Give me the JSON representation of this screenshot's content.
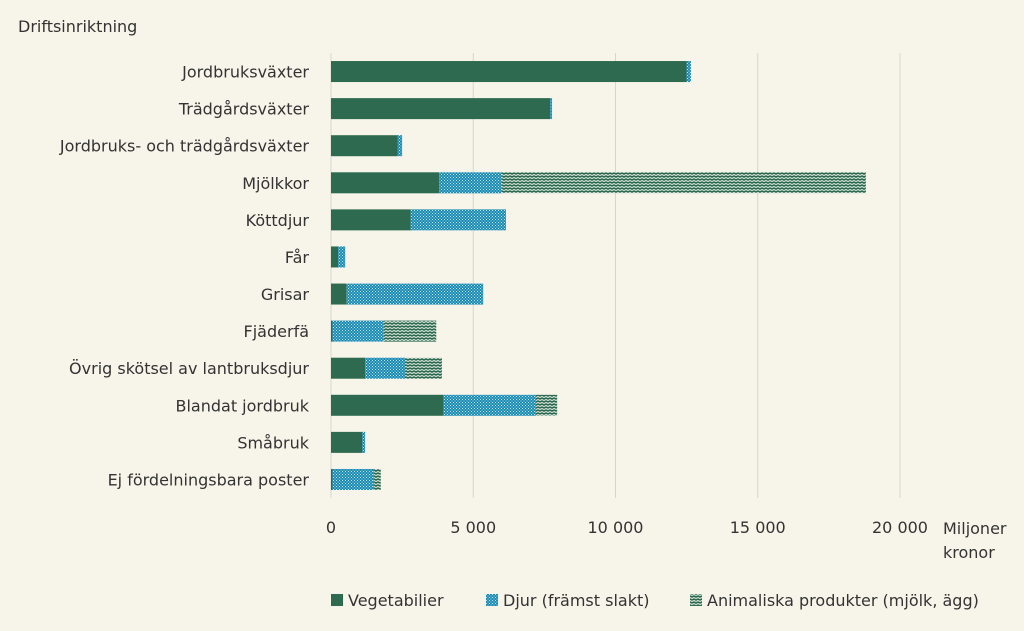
{
  "chart_data": {
    "type": "bar",
    "orientation": "horizontal",
    "stacked": true,
    "y_title": "Driftsinriktning",
    "x_unit": "Miljoner kronor",
    "x_unit_lines": [
      "Miljoner",
      "kronor"
    ],
    "xlim": [
      0,
      20000
    ],
    "ticks": [
      {
        "value": 0,
        "label": "0"
      },
      {
        "value": 5000,
        "label": "5 000"
      },
      {
        "value": 10000,
        "label": "10 000"
      },
      {
        "value": 15000,
        "label": "15 000"
      },
      {
        "value": 20000,
        "label": "20 000"
      }
    ],
    "grid": "vertical",
    "legend_position": "bottom",
    "categories": [
      "Jordbruksväxter",
      "Trädgårdsväxter",
      "Jordbruks- och trädgårdsväxter",
      "Mjölkkor",
      "Köttdjur",
      "Får",
      "Grisar",
      "Fjäderfä",
      "Övrig skötsel av lantbruksdjur",
      "Blandat jordbruk",
      "Småbruk",
      "Ej fördelningsbara poster"
    ],
    "series": [
      {
        "name": "Vegetabilier",
        "color": "#2d6a4f",
        "pattern": "solid",
        "values": [
          12500,
          7700,
          2350,
          3800,
          2800,
          250,
          550,
          50,
          1200,
          3950,
          1100,
          50
        ]
      },
      {
        "name": "Djur (främst slakt)",
        "color": "#1a8ab5",
        "pattern": "dots",
        "values": [
          150,
          70,
          150,
          2200,
          3350,
          250,
          4800,
          1800,
          1400,
          3250,
          100,
          1450
        ]
      },
      {
        "name": "Animaliska produkter (mjölk, ägg)",
        "color": "#2d6a4f",
        "pattern": "weave",
        "values": [
          0,
          0,
          0,
          12800,
          0,
          0,
          0,
          1850,
          1300,
          750,
          0,
          250
        ]
      }
    ]
  }
}
